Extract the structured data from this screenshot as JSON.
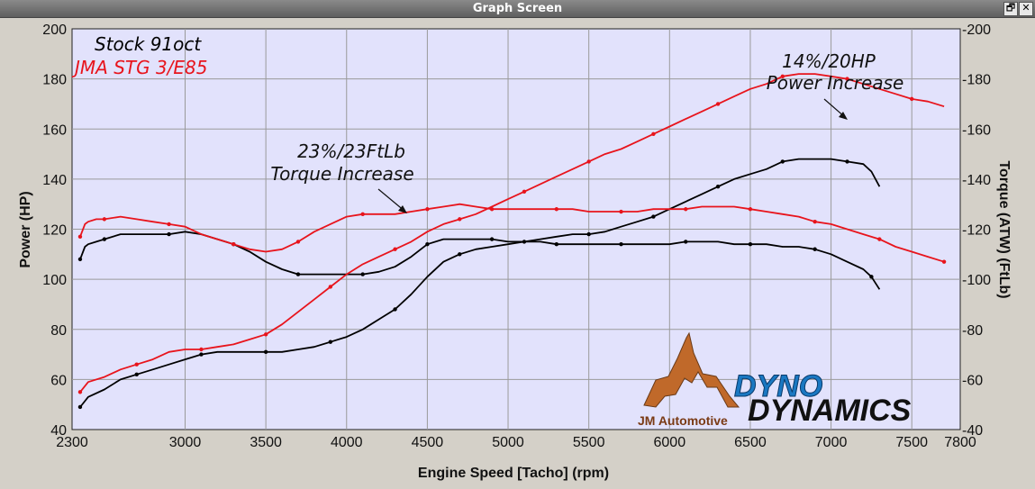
{
  "window": {
    "title": "Graph Screen",
    "restore_icon": "restore-icon",
    "close_icon": "close-icon"
  },
  "colors": {
    "background": "#d4d0c8",
    "plot_bg": "#e2e2fc",
    "stock": "#000000",
    "tuned": "#e8141c",
    "grid": "#9a9a9a"
  },
  "chart_data": {
    "type": "line",
    "grid": true,
    "xlabel": "Engine Speed [Tacho] (rpm)",
    "ylabel_left": "Power (HP)",
    "ylabel_right": "Torque (ATW) (FtLb)",
    "xlim": [
      2300,
      7800
    ],
    "ylim_left": [
      40,
      200
    ],
    "ylim_right": [
      40,
      200
    ],
    "x_ticks": [
      "2300",
      "3000",
      "3500",
      "4000",
      "4500",
      "5000",
      "5500",
      "6000",
      "6500",
      "7000",
      "7500",
      "7800"
    ],
    "y_ticks": [
      "40",
      "60",
      "80",
      "100",
      "120",
      "140",
      "160",
      "180",
      "200"
    ],
    "y_ticks_right": [
      "-40",
      "-60",
      "-80",
      "-100",
      "-120",
      "-140",
      "-160",
      "-180",
      "-200"
    ],
    "legend": [
      {
        "label": "Stock 91oct",
        "color": "#000000"
      },
      {
        "label": "JMA STG 3/E85",
        "color": "#e8141c"
      }
    ],
    "annotations": [
      {
        "line1": "23%/23FtLb",
        "line2": "Torque Increase",
        "arrow_to": [
          4150,
          127
        ]
      },
      {
        "line1": "14%/20HP",
        "line2": "Power Increase",
        "arrow_to": [
          7030,
          160
        ]
      }
    ],
    "logos": [
      "JM Automotive",
      "DYNO",
      "DYNAMICS"
    ],
    "series": [
      {
        "name": "Stock 91oct",
        "measure": "Power",
        "color": "#000000",
        "x": [
          2350,
          2400,
          2500,
          2600,
          2700,
          2800,
          2900,
          3000,
          3100,
          3200,
          3300,
          3400,
          3500,
          3600,
          3700,
          3800,
          3900,
          4000,
          4100,
          4200,
          4300,
          4400,
          4500,
          4600,
          4700,
          4800,
          4900,
          5000,
          5100,
          5200,
          5300,
          5400,
          5500,
          5600,
          5700,
          5800,
          5900,
          6000,
          6100,
          6200,
          6300,
          6400,
          6500,
          6600,
          6700,
          6800,
          6900,
          7000,
          7100,
          7200,
          7250,
          7300
        ],
        "y": [
          49,
          53,
          56,
          60,
          62,
          64,
          66,
          68,
          70,
          71,
          71,
          71,
          71,
          71,
          72,
          73,
          75,
          77,
          80,
          84,
          88,
          94,
          101,
          107,
          110,
          112,
          113,
          114,
          115,
          116,
          117,
          118,
          118,
          119,
          121,
          123,
          125,
          128,
          131,
          134,
          137,
          140,
          142,
          144,
          147,
          148,
          148,
          148,
          147,
          146,
          143,
          137
        ]
      },
      {
        "name": "Stock 91oct",
        "measure": "Torque",
        "color": "#000000",
        "x": [
          2350,
          2380,
          2400,
          2450,
          2500,
          2600,
          2700,
          2800,
          2900,
          3000,
          3100,
          3200,
          3300,
          3400,
          3500,
          3600,
          3700,
          3800,
          3900,
          4000,
          4100,
          4200,
          4300,
          4400,
          4500,
          4600,
          4700,
          4800,
          4900,
          5000,
          5100,
          5200,
          5300,
          5400,
          5500,
          5600,
          5700,
          5800,
          5900,
          6000,
          6100,
          6200,
          6300,
          6400,
          6500,
          6600,
          6700,
          6800,
          6900,
          7000,
          7100,
          7200,
          7250,
          7300
        ],
        "y": [
          108,
          113,
          114,
          115,
          116,
          118,
          118,
          118,
          118,
          119,
          118,
          116,
          114,
          111,
          107,
          104,
          102,
          102,
          102,
          102,
          102,
          103,
          105,
          109,
          114,
          116,
          116,
          116,
          116,
          115,
          115,
          115,
          114,
          114,
          114,
          114,
          114,
          114,
          114,
          114,
          115,
          115,
          115,
          114,
          114,
          114,
          113,
          113,
          112,
          110,
          107,
          104,
          101,
          96
        ]
      },
      {
        "name": "JMA STG 3/E85",
        "measure": "Power",
        "color": "#e8141c",
        "x": [
          2350,
          2400,
          2500,
          2600,
          2700,
          2800,
          2900,
          3000,
          3100,
          3200,
          3300,
          3400,
          3500,
          3600,
          3700,
          3800,
          3900,
          4000,
          4100,
          4200,
          4300,
          4400,
          4500,
          4600,
          4700,
          4800,
          4900,
          5000,
          5100,
          5200,
          5300,
          5400,
          5500,
          5600,
          5700,
          5800,
          5900,
          6000,
          6100,
          6200,
          6300,
          6400,
          6500,
          6600,
          6700,
          6800,
          6900,
          7000,
          7100,
          7200,
          7300,
          7400,
          7500,
          7600,
          7700
        ],
        "y": [
          55,
          59,
          61,
          64,
          66,
          68,
          71,
          72,
          72,
          73,
          74,
          76,
          78,
          82,
          87,
          92,
          97,
          102,
          106,
          109,
          112,
          115,
          119,
          122,
          124,
          126,
          129,
          132,
          135,
          138,
          141,
          144,
          147,
          150,
          152,
          155,
          158,
          161,
          164,
          167,
          170,
          173,
          176,
          178,
          181,
          182,
          182,
          181,
          180,
          178,
          176,
          174,
          172,
          171,
          169
        ]
      },
      {
        "name": "JMA STG 3/E85",
        "measure": "Torque",
        "color": "#e8141c",
        "x": [
          2350,
          2380,
          2400,
          2450,
          2500,
          2600,
          2700,
          2800,
          2900,
          3000,
          3100,
          3200,
          3300,
          3400,
          3500,
          3600,
          3700,
          3800,
          3900,
          4000,
          4100,
          4200,
          4300,
          4400,
          4500,
          4600,
          4700,
          4800,
          4900,
          5000,
          5100,
          5200,
          5300,
          5400,
          5500,
          5600,
          5700,
          5800,
          5900,
          6000,
          6100,
          6200,
          6300,
          6400,
          6500,
          6600,
          6700,
          6800,
          6900,
          7000,
          7100,
          7200,
          7300,
          7400,
          7500,
          7600,
          7700
        ],
        "y": [
          117,
          122,
          123,
          124,
          124,
          125,
          124,
          123,
          122,
          121,
          118,
          116,
          114,
          112,
          111,
          112,
          115,
          119,
          122,
          125,
          126,
          126,
          126,
          127,
          128,
          129,
          130,
          129,
          128,
          128,
          128,
          128,
          128,
          128,
          127,
          127,
          127,
          127,
          128,
          128,
          128,
          129,
          129,
          129,
          128,
          127,
          126,
          125,
          123,
          122,
          120,
          118,
          116,
          113,
          111,
          109,
          107
        ]
      }
    ]
  }
}
